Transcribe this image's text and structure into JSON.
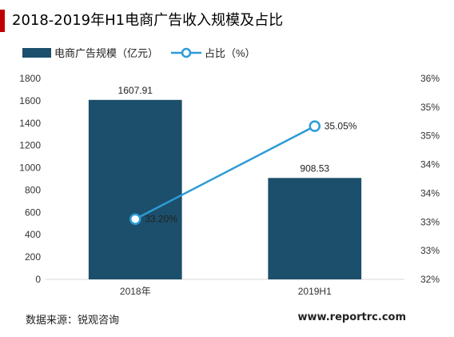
{
  "page": {
    "title": "2018-2019年H1电商广告收入规模及占比",
    "source": "数据来源：锐观咨询",
    "website": "www.reportrc.com",
    "accent_color": "#c00000"
  },
  "chart_data": {
    "type": "bar",
    "title": "2018-2019年H1电商广告收入规模及占比",
    "categories": [
      "2018年",
      "2019H1"
    ],
    "series": [
      {
        "name": "电商广告规模（亿元）",
        "type": "bar",
        "axis": "left",
        "values": [
          1607.91,
          908.53
        ],
        "labels": [
          "1607.91",
          "908.53"
        ],
        "color": "#1b4f6b"
      },
      {
        "name": "占比（%）",
        "type": "line",
        "axis": "right",
        "values": [
          33.2,
          35.05
        ],
        "labels": [
          "33.20%",
          "35.05%"
        ],
        "color": "#2e9bd6"
      }
    ],
    "ylim_left": [
      0,
      1800
    ],
    "yticks_left": [
      "0",
      "200",
      "400",
      "600",
      "800",
      "1000",
      "1200",
      "1400",
      "1600",
      "1800"
    ],
    "ylim_right": [
      32,
      36
    ],
    "yticks_right": [
      "32%",
      "33%",
      "33%",
      "34%",
      "34%",
      "35%",
      "35%",
      "36%"
    ],
    "legend": "top-left",
    "grid": false
  }
}
